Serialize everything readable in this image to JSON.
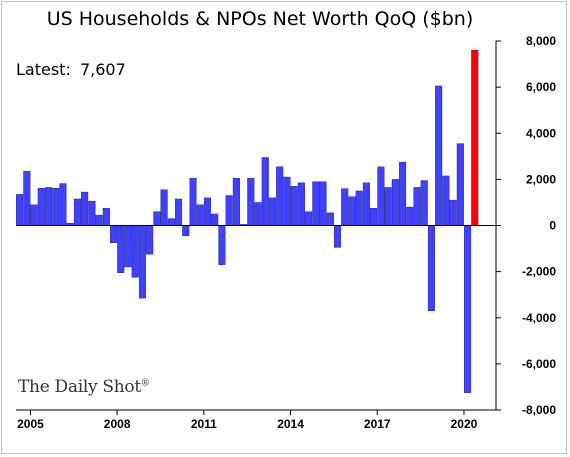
{
  "chart_data": {
    "type": "bar",
    "title": "US Households & NPOs Net Worth QoQ ($bn)",
    "annotation_label": "Latest:",
    "annotation_value": "7,607",
    "watermark": "The Daily Shot",
    "watermark_mark": "®",
    "ylim": [
      -8000,
      8000
    ],
    "y_ticks": [
      8000,
      6000,
      4000,
      2000,
      0,
      -2000,
      -4000,
      -6000,
      -8000
    ],
    "y_tick_labels": [
      "8,000",
      "6,000",
      "4,000",
      "2,000",
      "0",
      "-2,000",
      "-4,000",
      "-6,000",
      "-8,000"
    ],
    "x_tick_labels": [
      "2005",
      "2008",
      "2011",
      "2014",
      "2017",
      "2020"
    ],
    "x_tick_years": [
      2005,
      2008,
      2011,
      2014,
      2017,
      2020
    ],
    "grid": false,
    "legend": "none",
    "start_year": 2004.5,
    "quarter_step": 0.25,
    "colors": {
      "series": "#4040ff",
      "latest": "#ff0000",
      "axis": "#000000"
    },
    "values": [
      1350,
      2350,
      900,
      1620,
      1650,
      1620,
      1820,
      100,
      1150,
      1450,
      1050,
      450,
      750,
      -750,
      -2050,
      -1800,
      -2250,
      -3150,
      -1250,
      600,
      1550,
      300,
      1150,
      -450,
      2050,
      900,
      1200,
      500,
      -1700,
      1300,
      2050,
      50,
      2050,
      1000,
      2950,
      1200,
      2550,
      2100,
      1700,
      1850,
      600,
      1900,
      1900,
      550,
      -950,
      1600,
      1250,
      1500,
      1850,
      750,
      2550,
      1650,
      2000,
      2750,
      800,
      1650,
      1950,
      -3700,
      6050,
      2150,
      1100,
      3550,
      -7250,
      7607
    ],
    "highlight_last": true
  }
}
